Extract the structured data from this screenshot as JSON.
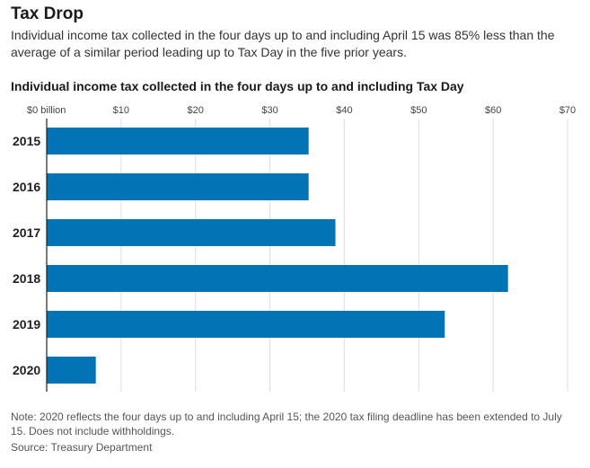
{
  "header": {
    "title": "Tax Drop",
    "subtitle": "Individual income tax collected in the four days up to and including April 15 was 85% less than the average of a similar period leading up to Tax Day in the five prior years."
  },
  "chart_data": {
    "type": "bar",
    "orientation": "horizontal",
    "title": "Individual income tax collected in the four days up to and including Tax Day",
    "categories": [
      "2015",
      "2016",
      "2017",
      "2018",
      "2019",
      "2020"
    ],
    "values": [
      35.2,
      35.2,
      38.8,
      62.0,
      53.5,
      6.6
    ],
    "xlim": [
      0,
      70
    ],
    "xticks": [
      0,
      10,
      20,
      30,
      40,
      50,
      60,
      70
    ],
    "xtick_labels": [
      "$0 billion",
      "$10",
      "$20",
      "$30",
      "$40",
      "$50",
      "$60",
      "$70"
    ],
    "grid": true,
    "bar_color": "#0274b6"
  },
  "footer": {
    "note": "Note: 2020 reflects the four days up to and including April 15; the 2020 tax filing deadline has been extended to July 15. Does not include withholdings.",
    "source": "Source: Treasury Department"
  }
}
